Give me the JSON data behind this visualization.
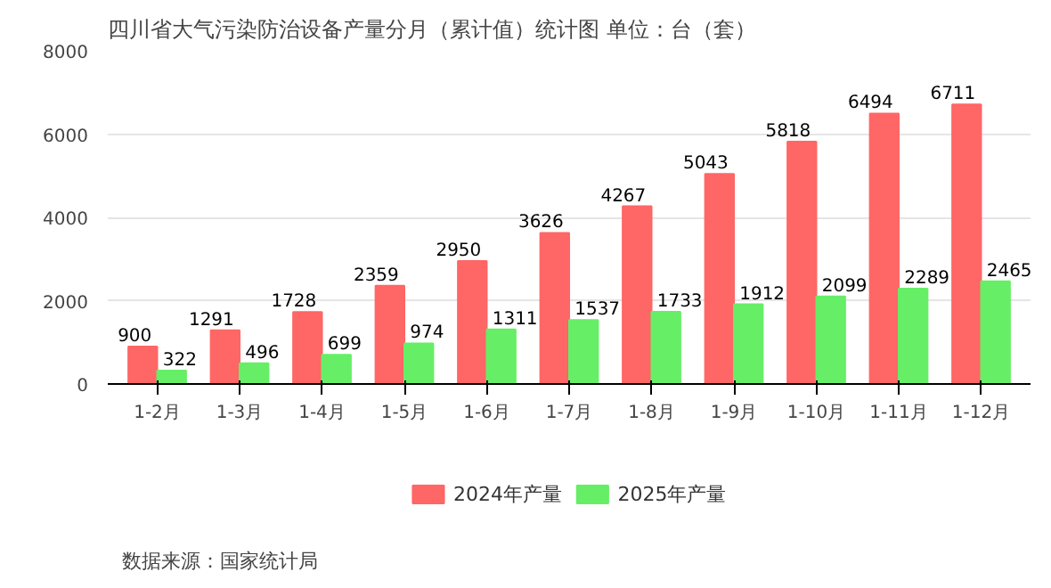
{
  "chart_data": {
    "type": "bar",
    "title": "四川省大气污染防治设备产量分月（累计值）统计图  单位：台（套）",
    "categories": [
      "1-2月",
      "1-3月",
      "1-4月",
      "1-5月",
      "1-6月",
      "1-7月",
      "1-8月",
      "1-9月",
      "1-10月",
      "1-11月",
      "1-12月"
    ],
    "series": [
      {
        "name": "2024年产量",
        "color": "#ff6666",
        "values": [
          900,
          1291,
          1728,
          2359,
          2950,
          3626,
          4267,
          5043,
          5818,
          6494,
          6711
        ]
      },
      {
        "name": "2025年产量",
        "color": "#66ee66",
        "values": [
          322,
          496,
          699,
          974,
          1311,
          1537,
          1733,
          1912,
          2099,
          2289,
          2465
        ]
      }
    ],
    "ylim": [
      0,
      8000
    ],
    "yticks": [
      0,
      2000,
      4000,
      6000,
      8000
    ],
    "grid": "y",
    "legend": "bottom",
    "data_labels": true,
    "annotations": [
      "数据来源：国家统计局"
    ]
  }
}
